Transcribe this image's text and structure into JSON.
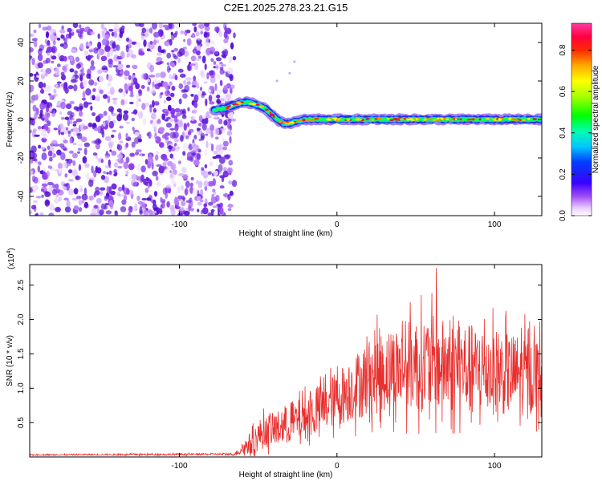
{
  "title": "C2E1.2025.278.23.21.G15",
  "colors": {
    "noise": "#7a2ee6",
    "signal_line": "#e8302e",
    "frame": "#000000"
  },
  "chart_data": [
    {
      "type": "heatmap",
      "name": "spectrogram",
      "xlabel": "Height of straight line (km)",
      "ylabel": "Frequency (Hz)",
      "xlim": [
        -195,
        130
      ],
      "ylim": [
        -50,
        50
      ],
      "xticks": [
        -100,
        0,
        100
      ],
      "xtick_labels": [
        "-100",
        "0",
        "100"
      ],
      "yticks": [
        -40,
        -20,
        0,
        20,
        40
      ],
      "ytick_labels": [
        "-40",
        "-20",
        "0",
        "20",
        "40"
      ],
      "noise_region_x": [
        -195,
        -65
      ],
      "signal_track": {
        "x": [
          -78,
          -70,
          -64,
          -58,
          -52,
          -46,
          -42,
          -38,
          -34,
          -30,
          -26,
          -20,
          -10,
          0,
          10,
          20,
          30,
          40,
          50,
          60,
          70,
          80,
          90,
          100,
          110,
          120,
          130
        ],
        "freq": [
          5,
          6,
          8,
          9,
          8,
          6,
          3,
          0,
          -2,
          -2,
          -1,
          0,
          0,
          0,
          0,
          0,
          0,
          0,
          0,
          0,
          0,
          0,
          0,
          0,
          0,
          0,
          0
        ]
      },
      "colorbar": {
        "label": "Normalized spectral amplitude",
        "range": [
          0,
          0.93
        ],
        "ticks": [
          0.0,
          0.2,
          0.4,
          0.6,
          0.8
        ],
        "tick_labels": [
          "0.0",
          "0.2",
          "0.4",
          "0.6",
          "0.8"
        ]
      }
    },
    {
      "type": "line",
      "name": "snr",
      "xlabel": "Height of straight line (km)",
      "ylabel": "SNR (10 * v/v)",
      "scale_note": "(x10",
      "scale_exponent": "4",
      "xlim": [
        -195,
        130
      ],
      "ylim": [
        0,
        2.8
      ],
      "xticks": [
        -100,
        0,
        100
      ],
      "xtick_labels": [
        "-100",
        "0",
        "100"
      ],
      "yticks": [
        0.5,
        1.0,
        1.5,
        2.0,
        2.5
      ],
      "ytick_labels": [
        "0.5",
        "1.0",
        "1.5",
        "2.0",
        "2.5"
      ],
      "envelope": {
        "x": [
          -195,
          -65,
          -52,
          -48,
          -40,
          -30,
          -20,
          -10,
          0,
          10,
          20,
          30,
          40,
          50,
          60,
          70,
          80,
          90,
          100,
          110,
          120,
          130
        ],
        "mean": [
          0.03,
          0.04,
          0.25,
          0.35,
          0.4,
          0.48,
          0.58,
          0.7,
          0.85,
          1.0,
          1.15,
          1.25,
          1.3,
          1.35,
          1.35,
          1.3,
          1.3,
          1.25,
          1.25,
          1.2,
          1.2,
          1.2
        ],
        "amplitude": [
          0.01,
          0.02,
          0.25,
          0.3,
          0.3,
          0.35,
          0.4,
          0.45,
          0.5,
          0.6,
          0.7,
          0.75,
          0.8,
          0.85,
          0.9,
          0.85,
          0.85,
          0.8,
          0.8,
          0.75,
          0.75,
          0.7
        ]
      },
      "peak": {
        "x": 63,
        "y": 2.75
      }
    }
  ]
}
